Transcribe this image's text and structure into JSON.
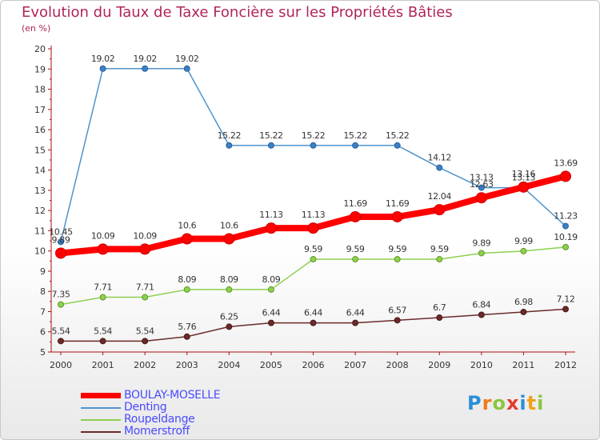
{
  "header": {
    "title": "Evolution du Taux de Taxe Foncière sur les Propriétés Bâties",
    "subtitle": "(en %)"
  },
  "brand": {
    "letters": [
      "P",
      "r",
      "o",
      "x",
      "i",
      "t",
      "i"
    ],
    "colors": [
      "#2a8fd6",
      "#f07a1a",
      "#8cc63f",
      "#e23b2e",
      "#2a8fd6",
      "#f0a01a",
      "#8cc63f"
    ]
  },
  "chart_data": {
    "type": "line",
    "x": [
      "2000",
      "2001",
      "2002",
      "2003",
      "2004",
      "2005",
      "2006",
      "2007",
      "2008",
      "2009",
      "2010",
      "2011",
      "2012"
    ],
    "ylim": [
      5,
      20
    ],
    "yticks": [
      "5",
      "6",
      "7",
      "8",
      "9",
      "10",
      "11",
      "12",
      "13",
      "14",
      "15",
      "16",
      "17",
      "18",
      "19",
      "20"
    ],
    "grid": false,
    "legend_position": "bottom-left",
    "series": [
      {
        "name": "BOULAY-MOSELLE",
        "color": "#ff0000",
        "values": [
          9.89,
          10.09,
          10.09,
          10.6,
          10.6,
          11.13,
          11.13,
          11.69,
          11.69,
          12.04,
          12.63,
          13.16,
          13.69
        ],
        "labels": [
          "9.89",
          "10.09",
          "10.09",
          "10.6",
          "10.6",
          "11.13",
          "11.13",
          "11.69",
          "11.69",
          "12.04",
          "12.63",
          "13.16",
          "13.69"
        ]
      },
      {
        "name": "Denting",
        "color": "#4f94cd",
        "values": [
          10.45,
          19.02,
          19.02,
          19.02,
          15.22,
          15.22,
          15.22,
          15.22,
          15.22,
          14.12,
          13.13,
          13.13,
          11.23
        ],
        "labels": [
          "10.45",
          "19.02",
          "19.02",
          "19.02",
          "15.22",
          "15.22",
          "15.22",
          "15.22",
          "15.22",
          "14.12",
          "13.13",
          "13.13",
          "11.23"
        ]
      },
      {
        "name": "Roupeldange",
        "color": "#8ed04e",
        "values": [
          7.35,
          7.71,
          7.71,
          8.09,
          8.09,
          8.09,
          9.59,
          9.59,
          9.59,
          9.59,
          9.89,
          9.99,
          10.19
        ],
        "labels": [
          "7.35",
          "7.71",
          "7.71",
          "8.09",
          "8.09",
          "8.09",
          "9.59",
          "9.59",
          "9.59",
          "9.59",
          "9.89",
          "9.99",
          "10.19"
        ]
      },
      {
        "name": "Momerstroff",
        "color": "#6b2a2a",
        "values": [
          5.54,
          5.54,
          5.54,
          5.76,
          6.25,
          6.44,
          6.44,
          6.44,
          6.57,
          6.7,
          6.84,
          6.98,
          7.12
        ],
        "labels": [
          "5.54",
          "5.54",
          "5.54",
          "5.76",
          "6.25",
          "6.44",
          "6.44",
          "6.44",
          "6.57",
          "6.7",
          "6.84",
          "6.98",
          "7.12"
        ]
      }
    ]
  }
}
